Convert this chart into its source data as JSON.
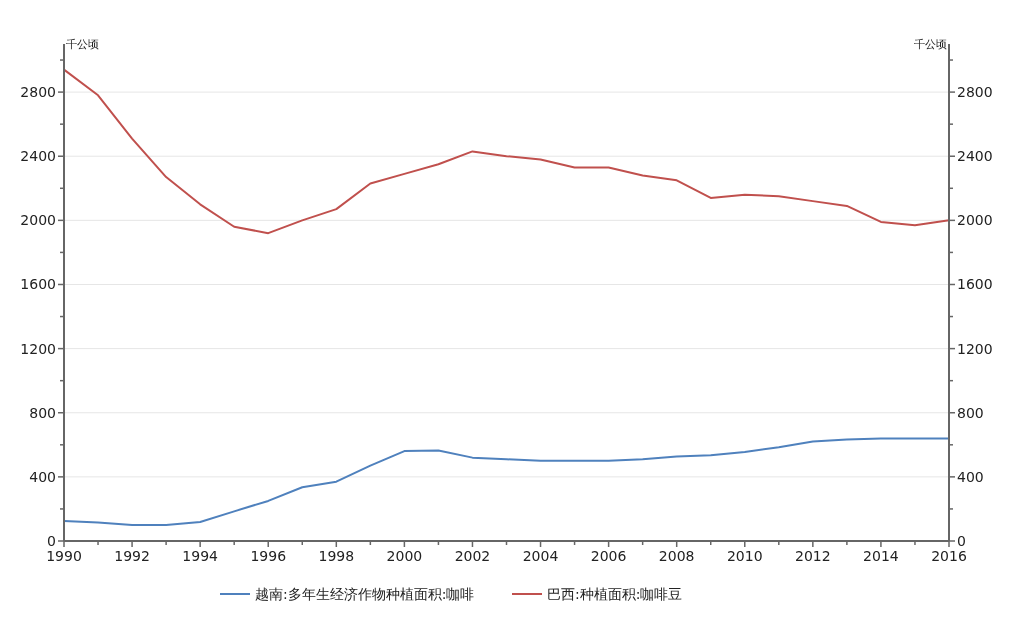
{
  "chart_data": {
    "type": "line",
    "ylabel": "千公顷",
    "y2label": "千公顷",
    "x": [
      1990,
      1991,
      1992,
      1993,
      1994,
      1995,
      1996,
      1997,
      1998,
      1999,
      2000,
      2001,
      2002,
      2003,
      2004,
      2005,
      2006,
      2007,
      2008,
      2009,
      2010,
      2011,
      2012,
      2013,
      2014,
      2015,
      2016
    ],
    "series": [
      {
        "name": "越南:多年生经济作物种植面积:咖啡",
        "color": "#4f81bd",
        "values": [
          124,
          116,
          100,
          100,
          119,
          185,
          250,
          335,
          370,
          470,
          561,
          565,
          520,
          510,
          500,
          500,
          500,
          510,
          527,
          535,
          555,
          585,
          620,
          633,
          640,
          640,
          640
        ]
      },
      {
        "name": "巴西:种植面积:咖啡豆",
        "color": "#c0504d",
        "values": [
          2940,
          2780,
          2510,
          2270,
          2100,
          1960,
          1920,
          2000,
          2070,
          2230,
          2290,
          2350,
          2430,
          2400,
          2380,
          2330,
          2330,
          2280,
          2250,
          2140,
          2160,
          2150,
          2120,
          2090,
          1990,
          1970,
          2000
        ]
      }
    ],
    "xlim": [
      1990,
      2016
    ],
    "xticks": [
      1990,
      {
        "value": 1991,
        "label": null
      },
      1992,
      {
        "value": 1993,
        "label": null
      },
      1994,
      {
        "value": 1995,
        "label": null
      },
      1996,
      {
        "value": 1997,
        "label": null
      },
      1998,
      {
        "value": 1999,
        "label": null
      },
      2000,
      {
        "value": 2001,
        "label": null
      },
      2002,
      {
        "value": 2003,
        "label": null
      },
      2004,
      {
        "value": 2005,
        "label": null
      },
      2006,
      {
        "value": 2007,
        "label": null
      },
      2008,
      {
        "value": 2009,
        "label": null
      },
      2010,
      {
        "value": 2011,
        "label": null
      },
      2012,
      {
        "value": 2013,
        "label": null
      },
      2014,
      {
        "value": 2015,
        "label": null
      },
      2016
    ],
    "ylim": [
      0,
      3100
    ],
    "yticks": [
      0,
      {
        "value": 200,
        "label": null
      },
      400,
      {
        "value": 600,
        "label": null
      },
      800,
      {
        "value": 1000,
        "label": null
      },
      1200,
      {
        "value": 1400,
        "label": null
      },
      1600,
      {
        "value": 1800,
        "label": null
      },
      2000,
      {
        "value": 2200,
        "label": null
      },
      2400,
      {
        "value": 2600,
        "label": null
      },
      2800,
      {
        "value": 3000,
        "label": null
      }
    ],
    "y2lim": [
      0,
      3100
    ],
    "y2ticks": [
      0,
      {
        "value": 200,
        "label": null
      },
      400,
      {
        "value": 600,
        "label": null
      },
      800,
      {
        "value": 1000,
        "label": null
      },
      1200,
      {
        "value": 1400,
        "label": null
      },
      1600,
      {
        "value": 1800,
        "label": null
      },
      2000,
      {
        "value": 2200,
        "label": null
      },
      2400,
      {
        "value": 2600,
        "label": null
      },
      2800,
      {
        "value": 3000,
        "label": null
      }
    ],
    "grid": "y",
    "legend": "bottom",
    "marker": "none",
    "line_style": "solid"
  }
}
